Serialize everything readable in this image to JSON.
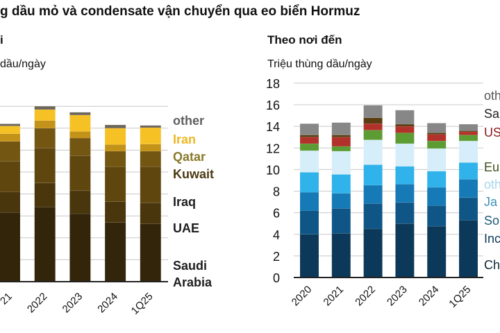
{
  "title": "g dầu mỏ và condensate vận chuyển qua eo biển Hormuz",
  "chart_data": [
    {
      "type": "bar",
      "stacked": true,
      "subtitle": "i",
      "ylabel": " dầu/ngày",
      "ylim": [
        0,
        16
      ],
      "gridlines": [
        2,
        4,
        6,
        8,
        10,
        12,
        14,
        16
      ],
      "grid": true,
      "legend_placement": "right",
      "categories": [
        "21",
        "2022",
        "2023",
        "2024",
        "1Q25"
      ],
      "series": [
        {
          "name": "Saudi Arabia",
          "legend_lines": [
            "Saudi",
            "Arabia"
          ],
          "color": "#33250a",
          "label_color": "#1e1e1e",
          "values": [
            6.3,
            6.8,
            6.2,
            5.4,
            5.3
          ]
        },
        {
          "name": "UAE",
          "legend_lines": [
            "UAE"
          ],
          "color": "#4a360c",
          "label_color": "#1e1e1e",
          "values": [
            1.9,
            2.2,
            2.1,
            1.9,
            1.9
          ]
        },
        {
          "name": "Iraq",
          "legend_lines": [
            "Iraq"
          ],
          "color": "#5f460e",
          "label_color": "#1e1e1e",
          "values": [
            2.8,
            3.2,
            3.2,
            3.2,
            3.3
          ]
        },
        {
          "name": "Kuwait",
          "legend_lines": [
            "Kuwait"
          ],
          "color": "#735612",
          "label_color": "#4a3a10",
          "values": [
            1.8,
            1.8,
            1.6,
            1.4,
            1.4
          ]
        },
        {
          "name": "Qatar",
          "legend_lines": [
            "Qatar"
          ],
          "color": "#c39218",
          "label_color": "#8a7a2a",
          "values": [
            0.7,
            0.7,
            0.6,
            0.6,
            0.65
          ]
        },
        {
          "name": "Iran",
          "legend_lines": [
            "Iran"
          ],
          "color": "#f5c125",
          "label_color": "#ecb823",
          "values": [
            0.7,
            1.0,
            1.5,
            1.5,
            1.5
          ]
        },
        {
          "name": "other",
          "legend_lines": [
            "other"
          ],
          "color": "#6d665a",
          "label_color": "#5f5f5f",
          "values": [
            0.2,
            0.3,
            0.25,
            0.3,
            0.2
          ]
        }
      ]
    },
    {
      "type": "bar",
      "stacked": true,
      "subtitle": "Theo nơi đến",
      "ylabel": "Triệu thùng dầu/ngày",
      "ylim": [
        0,
        18
      ],
      "yticks": [
        "0",
        "2",
        "4",
        "6",
        "8",
        "10",
        "12",
        "14",
        "16",
        "18"
      ],
      "grid": true,
      "legend_placement": "right",
      "categories": [
        "2020",
        "2021",
        "2022",
        "2023",
        "2024",
        "1Q25"
      ],
      "series": [
        {
          "name": "Ch",
          "color": "#0c3859",
          "label_color": "#0d2638",
          "values": [
            4.0,
            4.1,
            4.5,
            5.0,
            4.75,
            5.3
          ]
        },
        {
          "name": "Inc",
          "color": "#0f5687",
          "label_color": "#0d3a5c",
          "values": [
            2.2,
            2.3,
            2.35,
            1.95,
            1.9,
            2.1
          ]
        },
        {
          "name": "So",
          "color": "#157ab5",
          "label_color": "#1a5a78",
          "values": [
            1.7,
            1.4,
            1.7,
            1.7,
            1.7,
            1.7
          ]
        },
        {
          "name": "Ja",
          "color": "#30b2ea",
          "label_color": "#3b8fb8",
          "values": [
            1.85,
            1.75,
            1.9,
            1.65,
            1.5,
            1.55
          ]
        },
        {
          "name": "oth",
          "color": "#d5eefa",
          "label_color": "#a8d6ea",
          "values": [
            2.0,
            2.15,
            2.3,
            2.1,
            2.1,
            2.0
          ]
        },
        {
          "name": "Eu",
          "color": "#5c9c33",
          "label_color": "#3d4d1a",
          "values": [
            0.65,
            0.45,
            0.9,
            1.0,
            0.7,
            0.55
          ]
        },
        {
          "name": "US",
          "color": "#b2312a",
          "label_color": "#8b1a1a",
          "values": [
            0.6,
            0.85,
            0.6,
            0.6,
            0.6,
            0.3
          ]
        },
        {
          "name": "Sa",
          "color": "#5a3c10",
          "label_color": "#222222",
          "values": [
            0.2,
            0.2,
            0.55,
            0.2,
            0.15,
            0.1
          ]
        },
        {
          "name": "oth",
          "color": "#878787",
          "label_color": "#555555",
          "values": [
            1.05,
            1.15,
            1.15,
            1.3,
            0.9,
            0.6
          ]
        }
      ]
    }
  ]
}
